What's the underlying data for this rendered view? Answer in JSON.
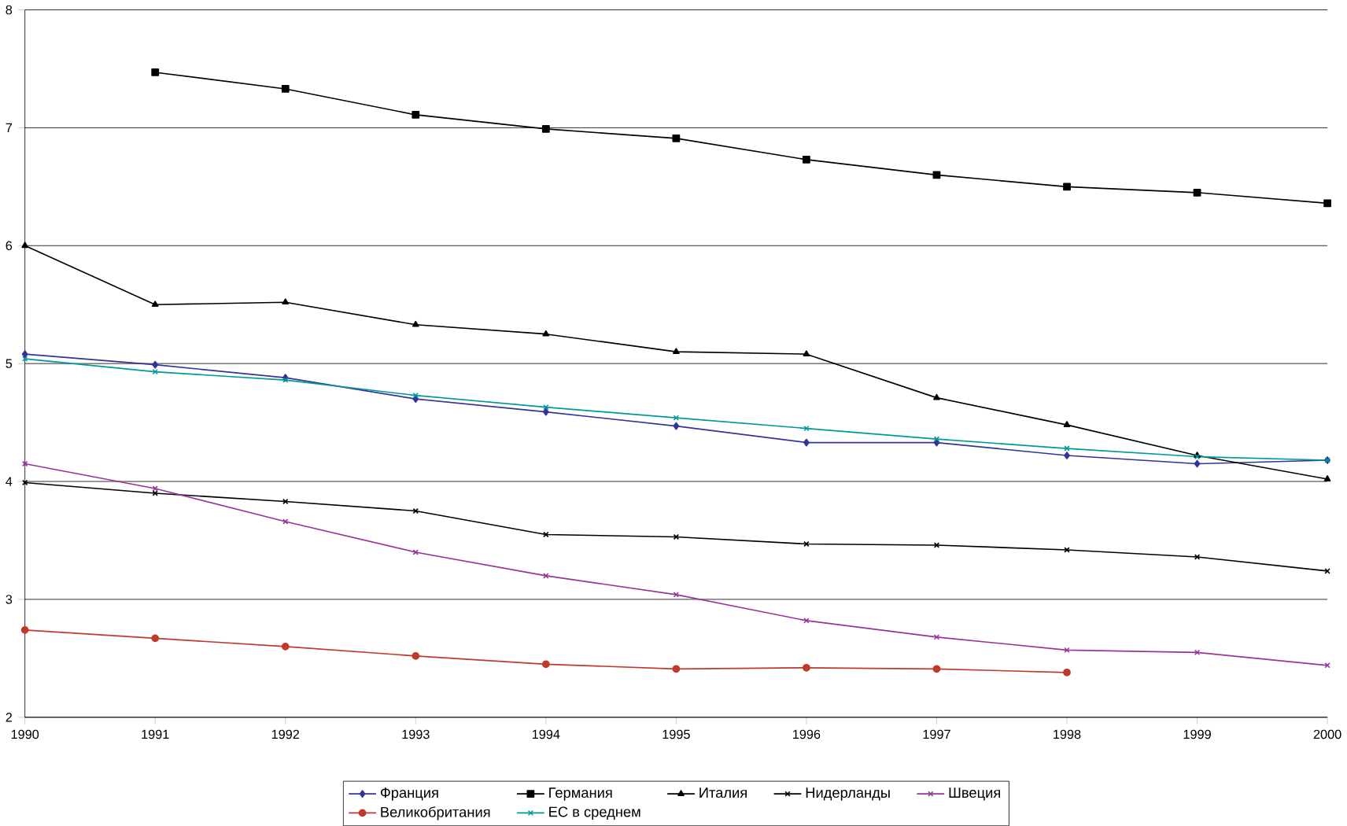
{
  "chart_data": {
    "type": "line",
    "x": [
      1990,
      1991,
      1992,
      1993,
      1994,
      1995,
      1996,
      1997,
      1998,
      1999,
      2000
    ],
    "xlim": [
      1990,
      2000
    ],
    "xticks": [
      1990,
      1991,
      1992,
      1993,
      1994,
      1995,
      1996,
      1997,
      1998,
      1999,
      2000
    ],
    "ylim": [
      2,
      8
    ],
    "yticks": [
      2,
      3,
      4,
      5,
      6,
      7,
      8
    ],
    "grid": "y",
    "legend": "bottom",
    "line_style": "solid",
    "series": [
      {
        "name": "Франция",
        "color": "#333399",
        "marker": "diamond",
        "values": [
          5.08,
          4.99,
          4.88,
          4.7,
          4.59,
          4.47,
          4.33,
          4.33,
          4.22,
          4.15,
          4.18
        ]
      },
      {
        "name": "Германия",
        "color": "#000000",
        "marker": "square",
        "values": [
          null,
          7.47,
          7.33,
          7.11,
          6.99,
          6.91,
          6.73,
          6.6,
          6.5,
          6.45,
          6.36
        ]
      },
      {
        "name": "Италия",
        "color": "#000000",
        "marker": "triangle",
        "values": [
          6.0,
          5.5,
          5.52,
          5.33,
          5.25,
          5.1,
          5.08,
          4.71,
          4.48,
          4.22,
          4.02
        ]
      },
      {
        "name": "Нидерланды",
        "color": "#000000",
        "marker": "cross",
        "values": [
          3.99,
          3.9,
          3.83,
          3.75,
          3.55,
          3.53,
          3.47,
          3.46,
          3.42,
          3.36,
          3.24
        ]
      },
      {
        "name": "Швеция",
        "color": "#993399",
        "marker": "cross",
        "values": [
          4.15,
          3.94,
          3.66,
          3.4,
          3.2,
          3.04,
          2.82,
          2.68,
          2.57,
          2.55,
          2.44
        ]
      },
      {
        "name": "Великобритания",
        "color": "#c0392b",
        "marker": "circle",
        "values": [
          2.74,
          2.67,
          2.6,
          2.52,
          2.45,
          2.41,
          2.42,
          2.41,
          2.38,
          null,
          null
        ]
      },
      {
        "name": "ЕС в среднем",
        "color": "#009999",
        "marker": "cross",
        "values": [
          5.04,
          4.93,
          4.86,
          4.73,
          4.63,
          4.54,
          4.45,
          4.36,
          4.28,
          4.21,
          4.18
        ]
      }
    ]
  }
}
